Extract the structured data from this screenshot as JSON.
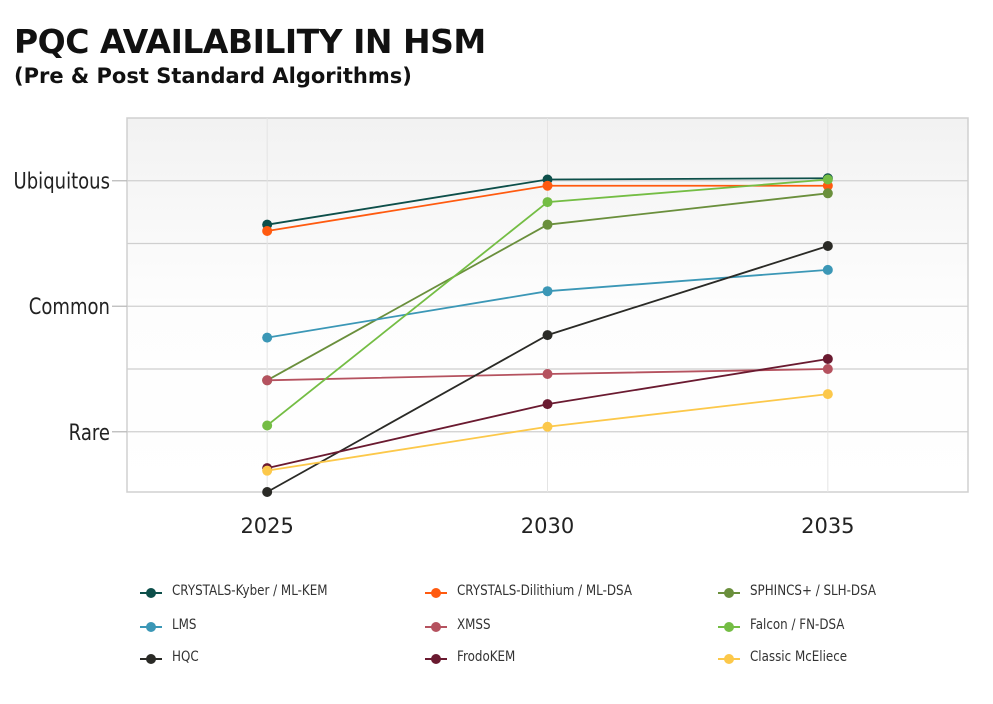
{
  "chart_data": {
    "type": "line",
    "title": "PQC AVAILABILITY IN HSM",
    "subtitle": "(Pre & Post Standard Algorithms)",
    "xlabel": "",
    "ylabel": "",
    "x": [
      2025,
      2030,
      2035
    ],
    "x_tick_labels": [
      "2025",
      "2030",
      "2035"
    ],
    "xlim": [
      2022.5,
      2037.5
    ],
    "y_ticks": [
      1,
      2,
      3
    ],
    "y_tick_labels": [
      "Rare",
      "Common",
      "Ubiquitous"
    ],
    "ylim": [
      0.52,
      3.5
    ],
    "grid": true,
    "legend_placement": "bottom",
    "series": [
      {
        "name": "CRYSTALS-Kyber / ML-KEM",
        "color": "#0d4f4a",
        "values": [
          2.65,
          3.01,
          3.02
        ]
      },
      {
        "name": "CRYSTALS-Dilithium / ML-DSA",
        "color": "#ff5a0f",
        "values": [
          2.6,
          2.96,
          2.96
        ]
      },
      {
        "name": "SPHINCS+ / SLH-DSA",
        "color": "#6a8f3c",
        "values": [
          1.41,
          2.65,
          2.9
        ]
      },
      {
        "name": "LMS",
        "color": "#3b97b6",
        "values": [
          1.75,
          2.12,
          2.29
        ]
      },
      {
        "name": "XMSS",
        "color": "#b5525f",
        "values": [
          1.41,
          1.46,
          1.5
        ]
      },
      {
        "name": "Falcon / FN-DSA",
        "color": "#74bd44",
        "values": [
          1.05,
          2.83,
          3.01
        ]
      },
      {
        "name": "HQC",
        "color": "#2a2a26",
        "values": [
          0.52,
          1.77,
          2.48
        ]
      },
      {
        "name": "FrodoKEM",
        "color": "#6a1a30",
        "values": [
          0.71,
          1.22,
          1.58
        ]
      },
      {
        "name": "Classic McEliece",
        "color": "#fcc84a",
        "values": [
          0.69,
          1.04,
          1.3
        ]
      }
    ]
  }
}
